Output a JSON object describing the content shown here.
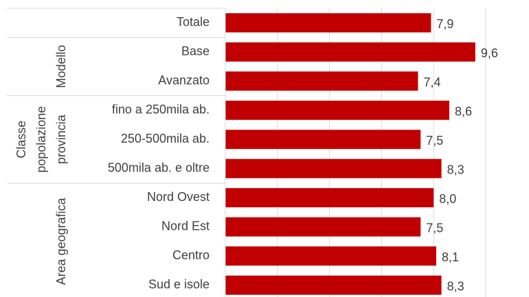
{
  "chart_data": {
    "type": "bar",
    "orientation": "horizontal",
    "color": "#c00000",
    "xlim": [
      0,
      10
    ],
    "xticks": [
      0,
      2,
      4,
      6,
      8,
      10
    ],
    "grid": true,
    "groups": [
      {
        "categories": [
          "Totale"
        ],
        "values": [
          7.9
        ],
        "value_labels": [
          "7,9"
        ]
      },
      {
        "label": [
          "Modello"
        ],
        "categories": [
          "Base",
          "Avanzato"
        ],
        "values": [
          9.6,
          7.4
        ],
        "value_labels": [
          "9,6",
          "7,4"
        ]
      },
      {
        "label": [
          "Classe",
          "popolazione",
          "provincia"
        ],
        "categories": [
          "fino a 250mila ab.",
          "250-500mila ab.",
          "500mila ab. e oltre"
        ],
        "values": [
          8.6,
          7.5,
          8.3
        ],
        "value_labels": [
          "8,6",
          "7,5",
          "8,3"
        ]
      },
      {
        "label": [
          "Area geografica"
        ],
        "categories": [
          "Nord Ovest",
          "Nord Est",
          "Centro",
          "Sud e isole"
        ],
        "values": [
          8.0,
          7.5,
          8.1,
          8.3
        ],
        "value_labels": [
          "8,0",
          "7,5",
          "8,1",
          "8,3"
        ]
      }
    ]
  }
}
